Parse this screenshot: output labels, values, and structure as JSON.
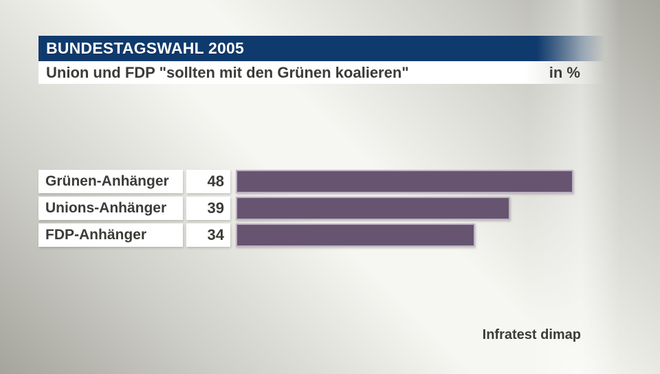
{
  "header": {
    "title": "BUNDESTAGSWAHL 2005",
    "subtitle": "Union und FDP \"sollten mit den Grünen koalieren\"",
    "unit_label": "in %"
  },
  "source": "Infratest dimap",
  "colors": {
    "header_bg": "#0f3a6e",
    "title_text": "#ffffff",
    "text_dark": "#3b3b38",
    "bar": "#675471",
    "bar_border": "#bdb3c4"
  },
  "chart_data": {
    "type": "bar",
    "orientation": "horizontal",
    "title": "Union und FDP \"sollten mit den Grünen koalieren\"",
    "unit": "%",
    "categories": [
      "Grünen-Anhänger",
      "Unions-Anhänger",
      "FDP-Anhänger"
    ],
    "values": [
      48,
      39,
      34
    ],
    "xlim": [
      0,
      52.5
    ],
    "grid": false,
    "legend": false,
    "source": "Infratest dimap"
  }
}
